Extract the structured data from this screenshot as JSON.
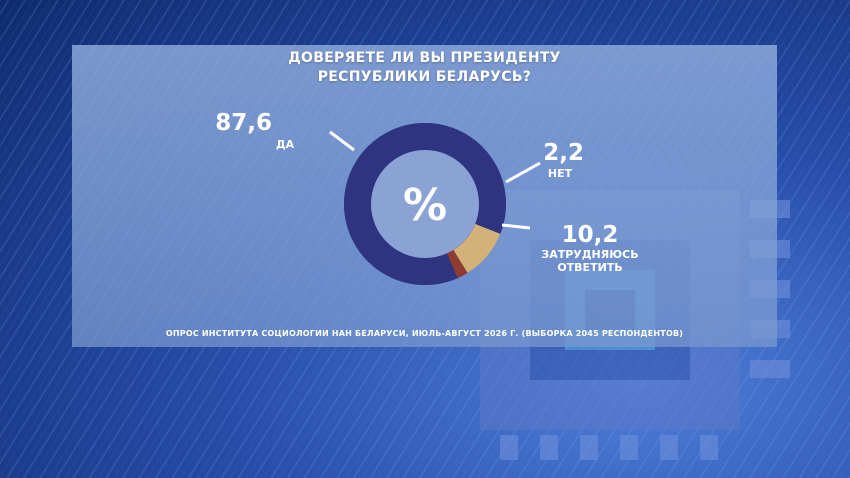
{
  "title_line1": "ДОВЕРЯЕТЕ ЛИ ВЫ ПРЕЗИДЕНТУ",
  "title_line2": "РЕСПУБЛИКИ БЕЛАРУСЬ?",
  "center_symbol": "%",
  "footnote": "ОПРОС ИНСТИТУТА СОЦИОЛОГИИ НАН БЕЛАРУСИ, ИЮЛЬ-АВГУСТ 2026 Г. (ВЫБОРКА 2045 РЕСПОНДЕНТОВ)",
  "chart_data": {
    "type": "pie",
    "donut": true,
    "title": "ДОВЕРЯЕТЕ ЛИ ВЫ ПРЕЗИДЕНТУ РЕСПУБЛИКИ БЕЛАРУСЬ?",
    "slices": [
      {
        "value": 87.6,
        "value_label": "87,6",
        "label_lines": [
          "ДА"
        ],
        "color": "#2e3480"
      },
      {
        "value": 2.2,
        "value_label": "2,2",
        "label_lines": [
          "НЕТ"
        ],
        "color": "#8e3b32"
      },
      {
        "value": 10.2,
        "value_label": "10,2",
        "label_lines": [
          "ЗАТРУДНЯЮСЬ",
          "ОТВЕТИТЬ"
        ],
        "color": "#d3b27a"
      }
    ]
  }
}
